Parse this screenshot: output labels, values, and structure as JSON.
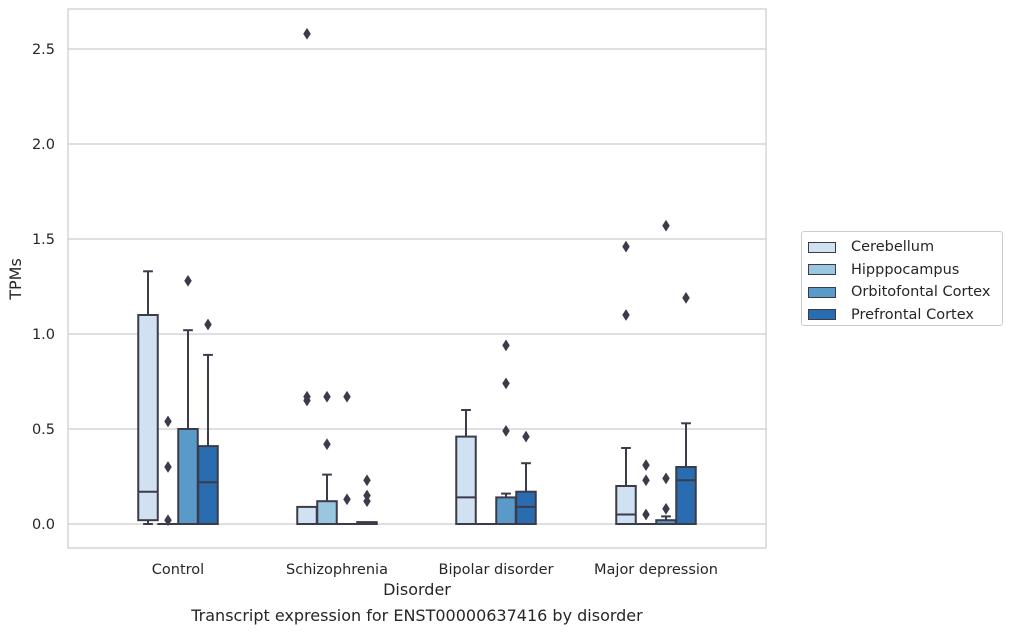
{
  "chart_data": {
    "type": "box",
    "caption": "Transcript expression for ENST00000637416 by disorder",
    "xlabel": "Disorder",
    "ylabel": "TPMs",
    "ylim": [
      -0.12,
      2.71
    ],
    "yticks": [
      "0.0",
      "0.5",
      "1.0",
      "1.5",
      "2.0",
      "2.5"
    ],
    "ytick_values": [
      0,
      0.5,
      1.0,
      1.5,
      2.0,
      2.5
    ],
    "grid": "horizontal",
    "legend_position": "outside-right",
    "categories": [
      "Control",
      "Schizophrenia",
      "Bipolar disorder",
      "Major depression"
    ],
    "series": [
      {
        "name": "Cerebellum",
        "color": "#d0e1f1",
        "boxes": [
          {
            "whisker_low": 0.0,
            "q1": 0.02,
            "median": 0.17,
            "q3": 1.1,
            "whisker_high": 1.33,
            "outliers": []
          },
          {
            "whisker_low": 0.0,
            "q1": 0.0,
            "median": 0.0,
            "q3": 0.09,
            "whisker_high": 0.09,
            "outliers": [
              0.65,
              0.67,
              2.58
            ]
          },
          {
            "whisker_low": 0.0,
            "q1": 0.0,
            "median": 0.14,
            "q3": 0.46,
            "whisker_high": 0.6,
            "outliers": []
          },
          {
            "whisker_low": 0.0,
            "q1": 0.0,
            "median": 0.05,
            "q3": 0.2,
            "whisker_high": 0.4,
            "outliers": [
              1.1,
              1.46
            ]
          }
        ]
      },
      {
        "name": "Hipppocampus",
        "color": "#9ac7e0",
        "boxes": [
          {
            "whisker_low": 0.0,
            "q1": 0.0,
            "median": 0.0,
            "q3": 0.0,
            "whisker_high": 0.0,
            "outliers": [
              0.02,
              0.3,
              0.54
            ]
          },
          {
            "whisker_low": 0.0,
            "q1": 0.0,
            "median": 0.0,
            "q3": 0.12,
            "whisker_high": 0.26,
            "outliers": [
              0.42,
              0.67
            ]
          },
          {
            "whisker_low": 0.0,
            "q1": 0.0,
            "median": 0.0,
            "q3": 0.0,
            "whisker_high": 0.0,
            "outliers": []
          },
          {
            "whisker_low": 0.0,
            "q1": 0.0,
            "median": 0.0,
            "q3": 0.0,
            "whisker_high": 0.0,
            "outliers": [
              0.05,
              0.23,
              0.31
            ]
          }
        ]
      },
      {
        "name": "Orbitofontal Cortex",
        "color": "#5a9ac9",
        "boxes": [
          {
            "whisker_low": 0.0,
            "q1": 0.0,
            "median": 0.0,
            "q3": 0.5,
            "whisker_high": 1.02,
            "outliers": [
              1.28
            ]
          },
          {
            "whisker_low": 0.0,
            "q1": 0.0,
            "median": 0.0,
            "q3": 0.0,
            "whisker_high": 0.0,
            "outliers": [
              0.13,
              0.67
            ]
          },
          {
            "whisker_low": 0.0,
            "q1": 0.0,
            "median": 0.0,
            "q3": 0.14,
            "whisker_high": 0.16,
            "outliers": [
              0.49,
              0.74,
              0.94
            ]
          },
          {
            "whisker_low": 0.0,
            "q1": 0.0,
            "median": 0.0,
            "q3": 0.02,
            "whisker_high": 0.04,
            "outliers": [
              0.08,
              0.24,
              1.57
            ]
          }
        ]
      },
      {
        "name": "Prefrontal Cortex",
        "color": "#2a6cb0",
        "boxes": [
          {
            "whisker_low": 0.0,
            "q1": 0.0,
            "median": 0.22,
            "q3": 0.41,
            "whisker_high": 0.89,
            "outliers": [
              1.05
            ]
          },
          {
            "whisker_low": 0.0,
            "q1": 0.0,
            "median": 0.0,
            "q3": 0.01,
            "whisker_high": 0.01,
            "outliers": [
              0.12,
              0.15,
              0.23
            ]
          },
          {
            "whisker_low": 0.0,
            "q1": 0.0,
            "median": 0.09,
            "q3": 0.17,
            "whisker_high": 0.32,
            "outliers": [
              0.46
            ]
          },
          {
            "whisker_low": 0.0,
            "q1": 0.0,
            "median": 0.23,
            "q3": 0.3,
            "whisker_high": 0.53,
            "outliers": [
              1.19
            ]
          }
        ]
      }
    ]
  }
}
